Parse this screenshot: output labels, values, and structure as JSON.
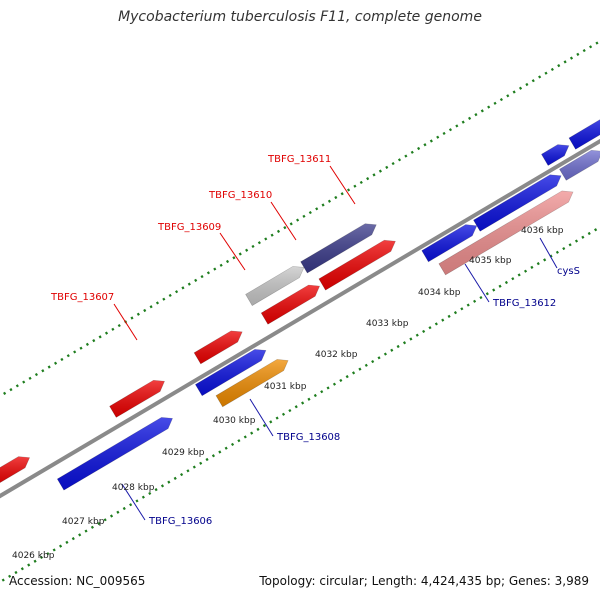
{
  "title": "Mycobacterium tuberculosis F11, complete genome",
  "footer": {
    "accession": "Accession: NC_009565",
    "summary": "Topology: circular; Length: 4,424,435 bp; Genes: 3,989"
  },
  "colors": {
    "axis": "#8a8a8a",
    "tick": "#1e7d1e",
    "red": "#ee0000",
    "blue": "#0a10e0",
    "orange": "#f08c00",
    "pink": "#f09090",
    "gray": "#c8c8c8",
    "navy": "#3a3a8a",
    "slate": "#6f6fd0"
  },
  "scale": {
    "labels": [
      "4026 kbp",
      "4027 kbp",
      "4028 kbp",
      "4029 kbp",
      "4030 kbp",
      "4031 kbp",
      "4032 kbp",
      "4033 kbp",
      "4034 kbp",
      "4035 kbp",
      "4036 kbp"
    ]
  },
  "labels": [
    {
      "text": "TBFG_13607",
      "color": "red"
    },
    {
      "text": "TBFG_13609",
      "color": "red"
    },
    {
      "text": "TBFG_13610",
      "color": "red"
    },
    {
      "text": "TBFG_13611",
      "color": "red"
    },
    {
      "text": "TBFG_13606",
      "color": "blue"
    },
    {
      "text": "TBFG_13608",
      "color": "blue"
    },
    {
      "text": "TBFG_13612",
      "color": "blue"
    },
    {
      "text": "cysS",
      "color": "blue"
    }
  ]
}
